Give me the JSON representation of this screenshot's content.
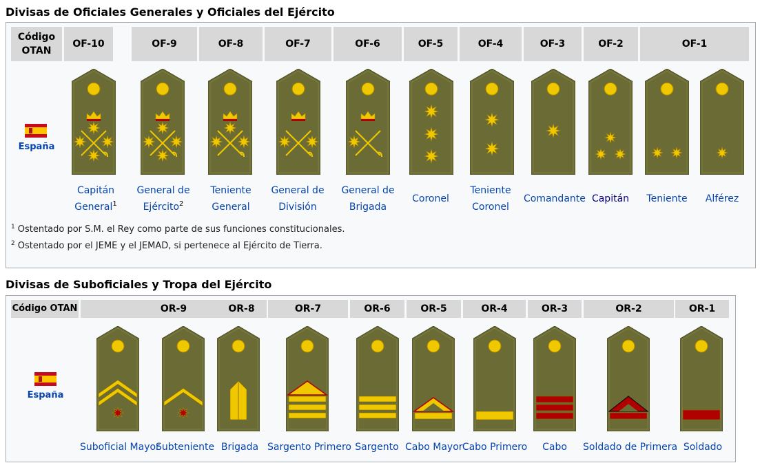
{
  "officers": {
    "heading": "Divisas de Oficiales Generales y Oficiales del Ejército",
    "code_header": [
      "Código",
      "OTAN"
    ],
    "codes": [
      "OF-10",
      "OF-9",
      "OF-8",
      "OF-7",
      "OF-6",
      "OF-5",
      "OF-4",
      "OF-3",
      "OF-2",
      "OF-1"
    ],
    "country": "España",
    "ranks": [
      {
        "lines": [
          "Capitán",
          "General"
        ],
        "sup": "1"
      },
      {
        "lines": [
          "General de",
          "Ejército"
        ],
        "sup": "2"
      },
      {
        "lines": [
          "Teniente",
          "General"
        ],
        "sup": ""
      },
      {
        "lines": [
          "General de",
          "División"
        ],
        "sup": ""
      },
      {
        "lines": [
          "General de",
          "Brigada"
        ],
        "sup": ""
      },
      {
        "lines": [
          "Coronel"
        ],
        "sup": ""
      },
      {
        "lines": [
          "Teniente",
          "Coronel"
        ],
        "sup": ""
      },
      {
        "lines": [
          "Comandante"
        ],
        "sup": ""
      },
      {
        "lines": [
          "Capitán"
        ],
        "sup": ""
      },
      {
        "lines": [
          "Teniente"
        ],
        "sup": ""
      },
      {
        "lines": [
          "Alférez"
        ],
        "sup": ""
      }
    ],
    "notes": [
      {
        "num": "1",
        "text": "Ostentado por S.M. el Rey como parte de sus funciones constitucionales."
      },
      {
        "num": "2",
        "text": "Ostentado por el JEME y el JEMAD, si pertenece al Ejército de Tierra."
      }
    ]
  },
  "enlisted": {
    "heading": "Divisas de Suboficiales y Tropa del Ejército",
    "code_header": "Código OTAN",
    "codes": [
      "OR-9",
      "OR-8",
      "OR-7",
      "OR-6",
      "OR-5",
      "OR-4",
      "OR-3",
      "OR-2",
      "OR-1"
    ],
    "country": "España",
    "ranks": [
      "Suboficial Mayor",
      "Subteniente",
      "Brigada",
      "Sargento Primero",
      "Sargento",
      "Cabo Mayor",
      "Cabo Primero",
      "Cabo",
      "Soldado de Primera",
      "Soldado"
    ]
  },
  "colors": {
    "board": "#6b6b35",
    "gold": "#f0c800",
    "red": "#b00000",
    "link": "#0645ad",
    "header_bg": "#d8d8d8"
  }
}
